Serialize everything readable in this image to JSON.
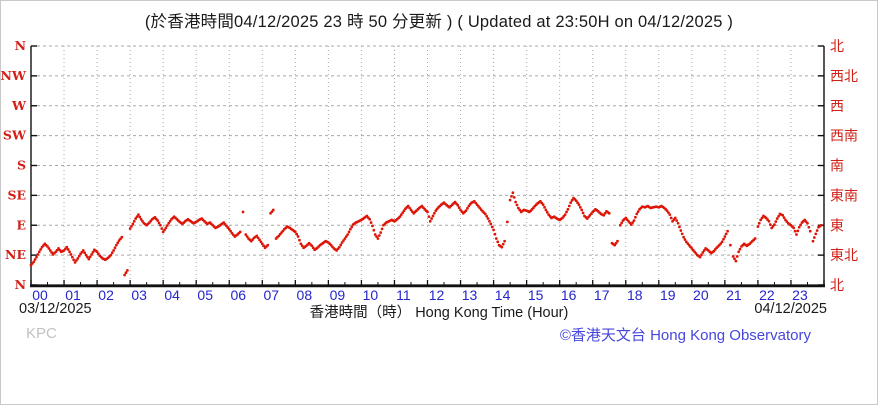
{
  "title": "(於香港時間04/12/2025 23 時 50 分更新 ) ( Updated at 23:50H on 04/12/2025 )",
  "station_code": "KPC",
  "copyright": "©香港天文台 Hong Kong Observatory",
  "x_axis": {
    "label": "香港時間（時） Hong Kong Time (Hour)",
    "date_left": "03/12/2025",
    "date_right": "04/12/2025",
    "hour_labels": [
      "00",
      "01",
      "02",
      "03",
      "04",
      "05",
      "06",
      "07",
      "08",
      "09",
      "10",
      "11",
      "12",
      "13",
      "14",
      "15",
      "16",
      "17",
      "18",
      "19",
      "20",
      "21",
      "22",
      "23"
    ]
  },
  "y_axis": {
    "labels_left_top_to_bottom": [
      "N",
      "NW",
      "W",
      "SW",
      "S",
      "SE",
      "E",
      "NE",
      "N"
    ],
    "labels_right_top_to_bottom": [
      "北",
      "西北",
      "西",
      "西南",
      "南",
      "東南",
      "東",
      "東北",
      "北"
    ],
    "tick_degrees": [
      360,
      315,
      270,
      225,
      180,
      135,
      90,
      45,
      0
    ]
  },
  "colors": {
    "data_red": "#dd1507",
    "axis_label_red": "#d22018",
    "hour_label_blue": "#2626cc",
    "copyright_blue": "#4646dd",
    "station_gray": "#c2c2c2",
    "grid_gray": "#a8a8a8",
    "axis_black": "#111111"
  },
  "chart_data": {
    "type": "scatter",
    "title": "(於香港時間04/12/2025 23 時 50 分更新 ) ( Updated at 23:50H on 04/12/2025 )",
    "xlabel": "香港時間（時） Hong Kong Time (Hour)",
    "ylabel": "wind direction (compass), 0=N (bottom) to 360=N (top)",
    "xlim_hours": [
      0,
      24
    ],
    "ylim_degrees": [
      0,
      360
    ],
    "grid": true,
    "legend": "none",
    "series_name": "10-minute mean wind direction at KPC",
    "start_hour": 0,
    "interval_minutes": 5,
    "values_degrees": [
      30,
      35,
      42,
      50,
      57,
      62,
      58,
      52,
      46,
      50,
      55,
      50,
      52,
      57,
      50,
      42,
      34,
      40,
      47,
      52,
      45,
      39,
      46,
      53,
      50,
      44,
      40,
      38,
      41,
      45,
      52,
      60,
      67,
      72,
      15,
      22,
      85,
      92,
      100,
      106,
      99,
      93,
      90,
      94,
      99,
      102,
      97,
      90,
      80,
      86,
      93,
      99,
      103,
      99,
      95,
      92,
      96,
      99,
      96,
      93,
      95,
      98,
      100,
      96,
      92,
      94,
      90,
      86,
      88,
      91,
      94,
      89,
      84,
      78,
      73,
      76,
      80,
      110,
      76,
      70,
      66,
      71,
      74,
      68,
      62,
      56,
      60,
      108,
      113,
      70,
      74,
      79,
      84,
      88,
      86,
      83,
      80,
      73,
      62,
      56,
      59,
      63,
      59,
      53,
      56,
      60,
      63,
      66,
      64,
      60,
      55,
      52,
      57,
      64,
      70,
      76,
      84,
      91,
      94,
      96,
      98,
      101,
      104,
      99,
      89,
      76,
      70,
      79,
      90,
      94,
      96,
      98,
      96,
      99,
      103,
      109,
      115,
      119,
      113,
      108,
      112,
      116,
      119,
      114,
      110,
      96,
      104,
      112,
      117,
      121,
      124,
      120,
      117,
      121,
      125,
      120,
      113,
      108,
      112,
      119,
      124,
      126,
      121,
      116,
      111,
      107,
      100,
      92,
      83,
      70,
      60,
      57,
      66,
      95,
      128,
      139,
      125,
      116,
      110,
      113,
      112,
      110,
      114,
      119,
      123,
      126,
      121,
      113,
      106,
      101,
      103,
      100,
      98,
      101,
      106,
      114,
      124,
      131,
      127,
      121,
      113,
      104,
      100,
      105,
      110,
      114,
      111,
      107,
      105,
      111,
      108,
      63,
      60,
      66,
      90,
      97,
      101,
      96,
      91,
      97,
      107,
      114,
      118,
      117,
      119,
      116,
      117,
      118,
      117,
      119,
      116,
      112,
      106,
      96,
      101,
      93,
      82,
      72,
      65,
      60,
      55,
      50,
      45,
      42,
      49,
      55,
      52,
      48,
      51,
      56,
      60,
      65,
      73,
      81,
      60,
      43,
      36,
      50,
      58,
      62,
      59,
      62,
      66,
      70,
      88,
      98,
      104,
      101,
      96,
      86,
      91,
      100,
      107,
      105,
      98,
      93,
      90,
      86,
      76,
      87,
      94,
      98,
      93,
      81,
      66,
      77,
      87,
      90
    ]
  }
}
